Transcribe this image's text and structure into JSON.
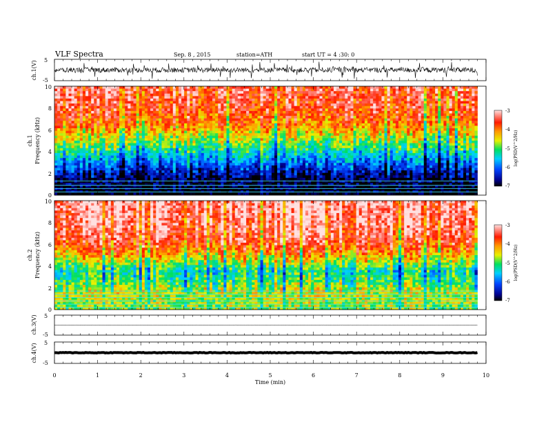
{
  "header": {
    "title": "VLF  Spectra",
    "date": "Sep. 8  , 2015",
    "station": "station=ATH",
    "start": "start  UT  =   4  :30: 0"
  },
  "chart_data": [
    {
      "type": "line",
      "panel": "ch1-waveform",
      "ylabel": "ch.1(V)",
      "ylim": [
        -5,
        5
      ],
      "yticks": [
        "5",
        "-5"
      ],
      "xlim": [
        0,
        10
      ],
      "series": [
        {
          "approx_amplitude_V": 1.2,
          "end_min": 9.8
        }
      ]
    },
    {
      "type": "heatmap",
      "panel": "ch1-spectrogram",
      "ylabel_line1": "ch.1",
      "ylabel_line2": "Frequency  (kHz)",
      "ylim": [
        0,
        10
      ],
      "yticks": [
        "10",
        "8",
        "6",
        "4",
        "2",
        "0"
      ],
      "xlim": [
        0,
        10
      ],
      "data_end_min": 9.8,
      "colorbar": {
        "label": "log(PSD(V^2/Hz)",
        "ticks": [
          "-3",
          "-4",
          "-5",
          "-6",
          "-7"
        ],
        "range": [
          -7,
          -3
        ]
      },
      "profile": [
        {
          "f_kHz": 0.0,
          "logPSD": -7.0
        },
        {
          "f_kHz": 1.5,
          "logPSD": -6.8
        },
        {
          "f_kHz": 2.5,
          "logPSD": -6.2
        },
        {
          "f_kHz": 3.5,
          "logPSD": -5.6
        },
        {
          "f_kHz": 4.5,
          "logPSD": -5.0
        },
        {
          "f_kHz": 5.5,
          "logPSD": -4.5
        },
        {
          "f_kHz": 6.5,
          "logPSD": -4.0
        },
        {
          "f_kHz": 8.0,
          "logPSD": -3.6
        },
        {
          "f_kHz": 10.0,
          "logPSD": -3.4
        }
      ],
      "lines_kHz": [
        0.3,
        0.6,
        0.9,
        1.3
      ]
    },
    {
      "type": "heatmap",
      "panel": "ch2-spectrogram",
      "ylabel_line1": "ch.2",
      "ylabel_line2": "Frequency  (kHz)",
      "ylim": [
        0,
        10
      ],
      "yticks": [
        "10",
        "8",
        "6",
        "4",
        "2",
        "0"
      ],
      "xlim": [
        0,
        10
      ],
      "data_end_min": 9.8,
      "colorbar": {
        "label": "log(PSD(V^2/Hz)",
        "ticks": [
          "-3",
          "-4",
          "-5",
          "-6",
          "-7"
        ],
        "range": [
          -7,
          -3
        ]
      },
      "profile": [
        {
          "f_kHz": 0.0,
          "logPSD": -4.8
        },
        {
          "f_kHz": 1.5,
          "logPSD": -4.6
        },
        {
          "f_kHz": 2.5,
          "logPSD": -5.0
        },
        {
          "f_kHz": 3.5,
          "logPSD": -5.3
        },
        {
          "f_kHz": 4.5,
          "logPSD": -4.6
        },
        {
          "f_kHz": 5.5,
          "logPSD": -3.9
        },
        {
          "f_kHz": 6.5,
          "logPSD": -3.5
        },
        {
          "f_kHz": 8.0,
          "logPSD": -3.3
        },
        {
          "f_kHz": 10.0,
          "logPSD": -3.2
        }
      ],
      "lines_kHz": [
        0.2,
        0.5,
        0.8,
        1.1,
        1.4,
        1.7
      ]
    },
    {
      "type": "line",
      "panel": "ch3-waveform",
      "ylabel": "ch.3(V)",
      "ylim": [
        -5,
        5
      ],
      "yticks": [
        "5",
        "-5"
      ],
      "xlim": [
        0,
        10
      ],
      "series": [
        {
          "approx_amplitude_V": 0.1,
          "end_min": 9.8
        }
      ]
    },
    {
      "type": "line",
      "panel": "ch4-waveform",
      "ylabel": "ch.4(V)",
      "ylim": [
        -5,
        5
      ],
      "yticks": [
        "5",
        "-5"
      ],
      "xlim": [
        0,
        10
      ],
      "series": [
        {
          "approx_amplitude_V": 0.15,
          "end_min": 9.8
        }
      ]
    }
  ],
  "xaxis": {
    "label": "Time  (min)",
    "ticks": [
      "0",
      "1",
      "2",
      "3",
      "4",
      "5",
      "6",
      "7",
      "8",
      "9",
      "10"
    ]
  }
}
